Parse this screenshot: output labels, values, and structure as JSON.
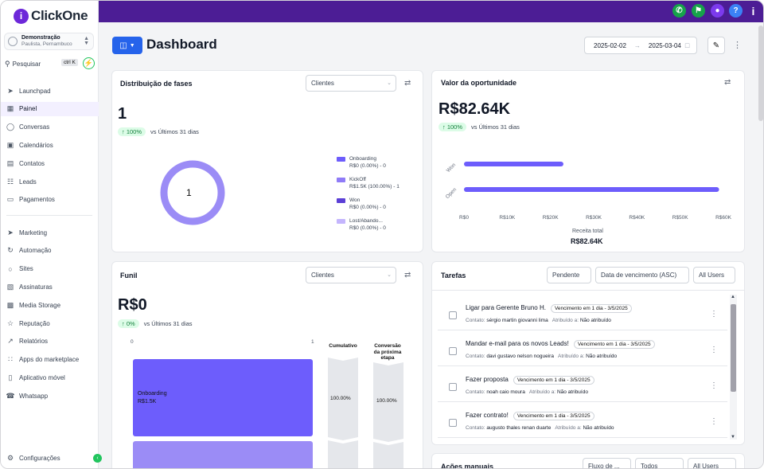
{
  "brand": {
    "name": "ClickOne",
    "mark": "i"
  },
  "account": {
    "name": "Demonstração",
    "location": "Paulista, Pernambuco"
  },
  "search": {
    "label": "Pesquisar",
    "shortcut": "ctrl K"
  },
  "sidebar": {
    "group1": [
      {
        "label": "Launchpad",
        "icon": "rocket-icon"
      },
      {
        "label": "Painel",
        "icon": "grid-icon",
        "active": true
      },
      {
        "label": "Conversas",
        "icon": "chat-icon"
      },
      {
        "label": "Calendários",
        "icon": "calendar-icon"
      },
      {
        "label": "Contatos",
        "icon": "contacts-icon"
      },
      {
        "label": "Leads",
        "icon": "filter-icon"
      },
      {
        "label": "Pagamentos",
        "icon": "payment-icon"
      }
    ],
    "group2": [
      {
        "label": "Marketing",
        "icon": "send-icon"
      },
      {
        "label": "Automação",
        "icon": "automation-icon"
      },
      {
        "label": "Sites",
        "icon": "globe-icon"
      },
      {
        "label": "Assinaturas",
        "icon": "membership-icon"
      },
      {
        "label": "Media Storage",
        "icon": "image-icon"
      },
      {
        "label": "Reputação",
        "icon": "star-icon"
      },
      {
        "label": "Relatórios",
        "icon": "trend-icon"
      },
      {
        "label": "Apps do marketplace",
        "icon": "apps-icon"
      },
      {
        "label": "Aplicativo móvel",
        "icon": "phone-icon"
      },
      {
        "label": "Whatsapp",
        "icon": "whatsapp-icon"
      }
    ],
    "settings": "Configurações"
  },
  "header": {
    "title": "Dashboard",
    "date_start": "2025-02-02",
    "date_end": "2025-03-04"
  },
  "topbar": {
    "help": "?"
  },
  "stage_distribution": {
    "title": "Distribuição de fases",
    "filter": "Clientes",
    "value": "1",
    "delta": "100%",
    "delta_label": "vs Últimos 31 dias",
    "donut_center": "1",
    "legend": [
      {
        "name": "Onboarding",
        "detail": "R$0 (0.00%) - 0",
        "color": "#6d5dfc"
      },
      {
        "name": "KickOff",
        "detail": "R$1.5K (100.00%) - 1",
        "color": "#8f7bf7"
      },
      {
        "name": "Won",
        "detail": "R$0 (0.00%) - 0",
        "color": "#5b3fd6"
      },
      {
        "name": "Lost/Abando...",
        "detail": "R$0 (0.00%) - 0",
        "color": "#c4b5fd"
      }
    ]
  },
  "opportunity": {
    "title": "Valor da oportunidade",
    "value": "R$82.64K",
    "delta": "100%",
    "delta_label": "vs Últimos 31 dias",
    "axis_label": "Receita total",
    "total": "R$82.64K",
    "xticks": [
      "R$0",
      "R$10K",
      "R$20K",
      "R$30K",
      "R$40K",
      "R$50K",
      "R$60K"
    ]
  },
  "chart_data": {
    "type": "bar",
    "orientation": "horizontal",
    "categories": [
      "Won",
      "Open"
    ],
    "values": [
      23000,
      59000
    ],
    "xlabel": "Receita total",
    "xlim": [
      0,
      60000
    ],
    "color": "#6d5dfc"
  },
  "funnel": {
    "title": "Funil",
    "filter": "Clientes",
    "value": "R$0",
    "delta": "0%",
    "delta_label": "vs Últimos 31 dias",
    "axis_min": "0",
    "axis_max": "1",
    "col_cumulative": "Cumulativo",
    "col_conversion": "Conversão da próxima etapa",
    "stage_name": "Onboarding",
    "stage_value": "R$1.5K",
    "cumulative_pct": "100.00%",
    "conversion_pct": "100.00%"
  },
  "tasks": {
    "title": "Tarefas",
    "status_filter": "Pendente",
    "sort_filter": "Data de vencimento (ASC)",
    "user_filter": "All Users",
    "contact_prefix": "Contato:",
    "assigned_prefix": "Atribuído a:",
    "items": [
      {
        "title": "Ligar para Gerente Bruno H.",
        "due": "Vencimento em 1 dia - 3/5/2025",
        "contact": "sérgio martin giovanni lima",
        "assignee": "Não atribuído"
      },
      {
        "title": "Mandar e-mail para os novos Leads!",
        "due": "Vencimento em 1 dia - 3/5/2025",
        "contact": "davi gustavo nelson nogueira",
        "assignee": "Não atribuído"
      },
      {
        "title": "Fazer proposta",
        "due": "Vencimento em 1 dia - 3/5/2025",
        "contact": "noah caio moura",
        "assignee": "Não atribuído"
      },
      {
        "title": "Fazer contrato!",
        "due": "Vencimento em 1 dia - 3/5/2025",
        "contact": "augusto thales renan duarte",
        "assignee": "Não atribuído"
      }
    ]
  },
  "manual_actions": {
    "title": "Ações manuais",
    "filter1": "Fluxo de ...",
    "filter2": "Todos",
    "filter3": "All Users"
  }
}
